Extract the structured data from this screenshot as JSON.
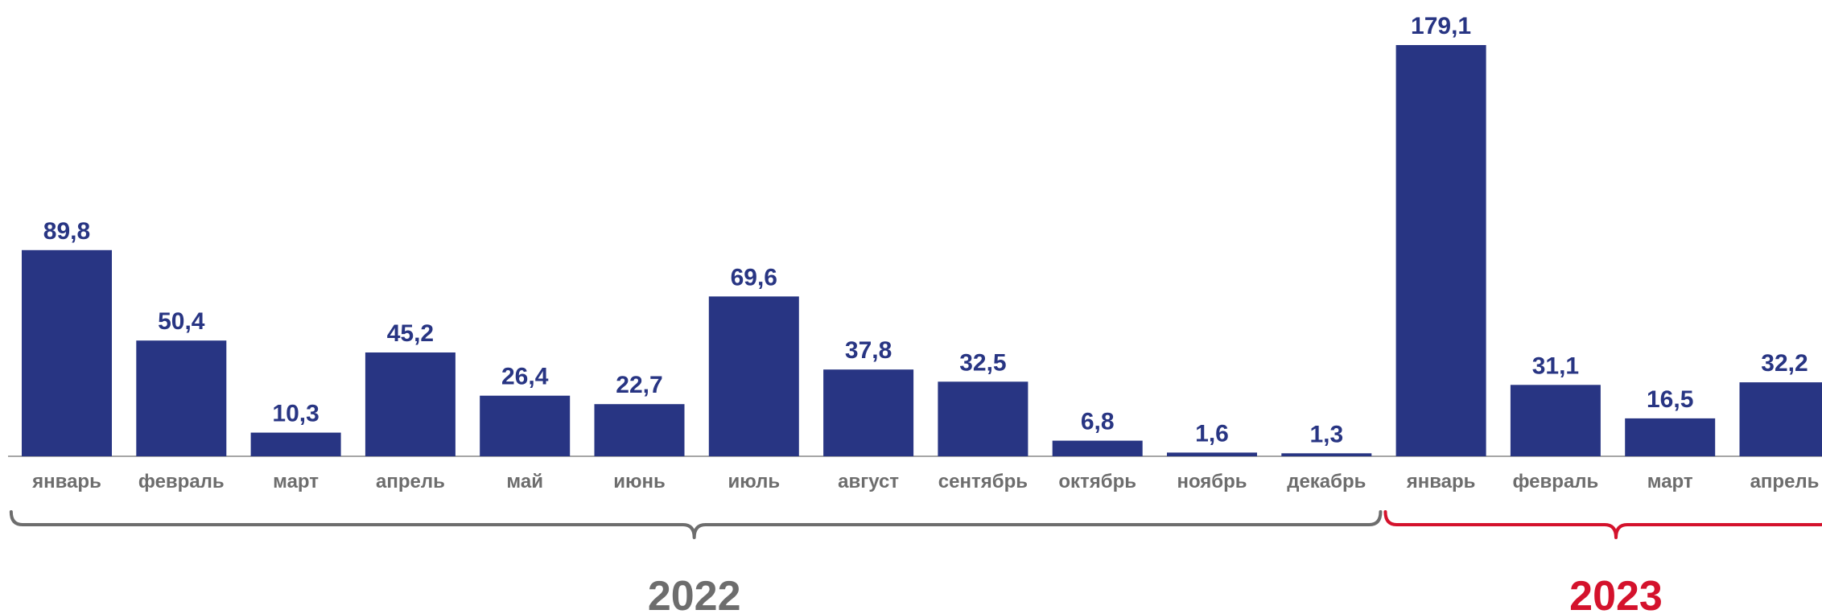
{
  "chart_data": {
    "type": "bar",
    "categories": [
      "январь",
      "февраль",
      "март",
      "апрель",
      "май",
      "июнь",
      "июль",
      "август",
      "сентябрь",
      "октябрь",
      "ноябрь",
      "декабрь",
      "январь",
      "февраль",
      "март",
      "апрель"
    ],
    "values": [
      89.8,
      50.4,
      10.3,
      45.2,
      26.4,
      22.7,
      69.6,
      37.8,
      32.5,
      6.8,
      1.6,
      1.3,
      179.1,
      31.1,
      16.5,
      32.2
    ],
    "value_labels": [
      "89,8",
      "50,4",
      "10,3",
      "45,2",
      "26,4",
      "22,7",
      "69,6",
      "37,8",
      "32,5",
      "6,8",
      "1,6",
      "1,3",
      "179,1",
      "31,1",
      "16,5",
      "32,2"
    ],
    "groups": [
      {
        "label": "2022",
        "start": 0,
        "end": 11,
        "color": "#6d6d6d"
      },
      {
        "label": "2023",
        "start": 12,
        "end": 15,
        "color": "#d4122c"
      }
    ],
    "ylim": [
      0,
      179.1
    ],
    "grid": false,
    "legend": "none",
    "colors": {
      "bar": "#283583",
      "value_label": "#283583",
      "tick_label": "#6d6d6d",
      "baseline": "#a6a6a6"
    }
  }
}
